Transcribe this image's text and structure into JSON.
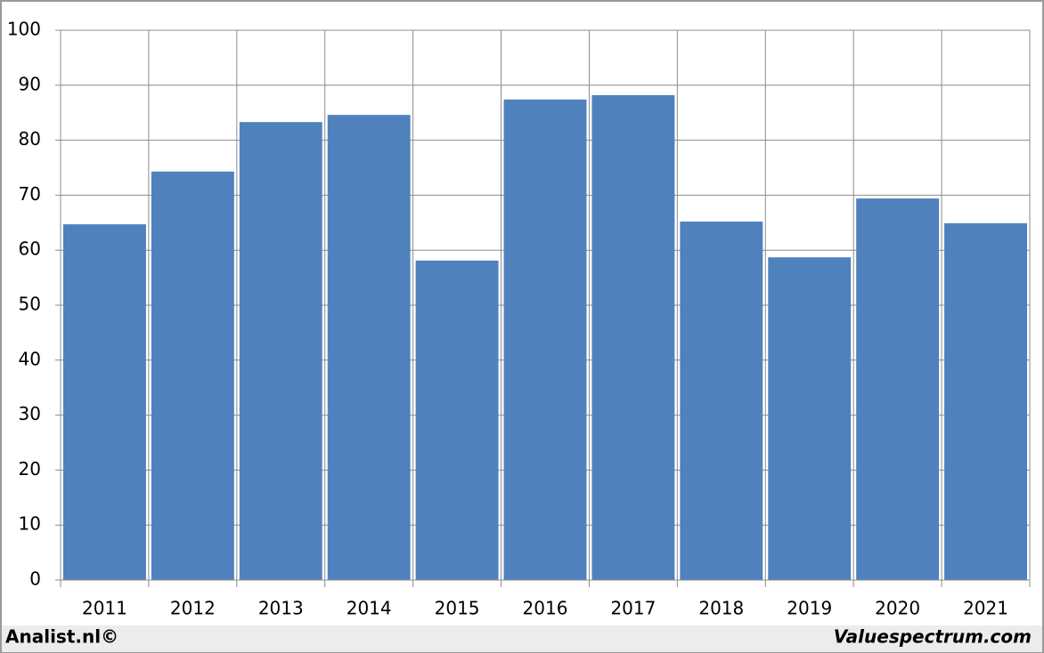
{
  "chart_data": {
    "type": "bar",
    "categories": [
      "2011",
      "2012",
      "2013",
      "2014",
      "2015",
      "2016",
      "2017",
      "2018",
      "2019",
      "2020",
      "2021"
    ],
    "values": [
      64.7,
      74.3,
      83.3,
      84.6,
      58.1,
      87.4,
      88.2,
      65.2,
      58.7,
      69.4,
      64.9
    ],
    "color": "#4f81bd",
    "ylim": [
      0,
      100
    ],
    "yticks": [
      0,
      10,
      20,
      30,
      40,
      50,
      60,
      70,
      80,
      90,
      100
    ],
    "grid": true
  },
  "footer": {
    "left": "Analist.nl©",
    "right": "Valuespectrum.com"
  }
}
